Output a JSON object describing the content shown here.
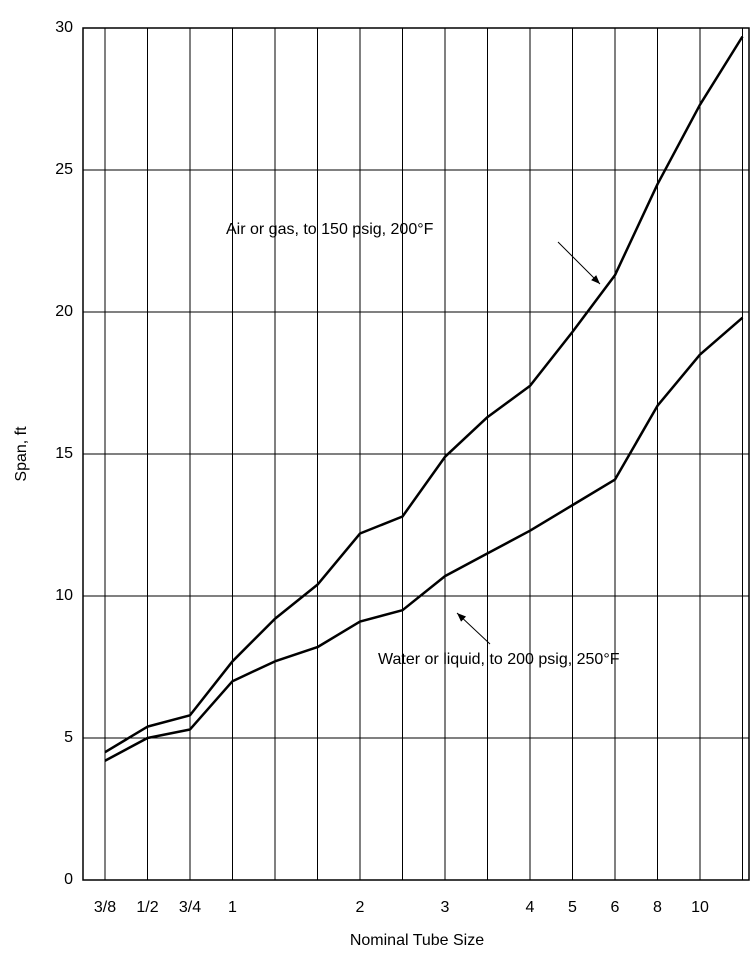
{
  "chart_data": {
    "type": "line",
    "x_label": "Nominal Tube Size",
    "y_label": "Span, ft",
    "categories": [
      "3/8",
      "1/2",
      "3/4",
      "1",
      null,
      null,
      "2",
      null,
      "3",
      null,
      "4",
      "5",
      "6",
      "8",
      "10",
      null
    ],
    "series": [
      {
        "name": "Air or gas, to 150 psig, 200°F",
        "color": "#000000",
        "values": [
          4.5,
          5.4,
          5.8,
          7.7,
          9.2,
          10.4,
          12.2,
          12.8,
          14.9,
          16.3,
          17.4,
          19.3,
          21.3,
          24.5,
          27.3,
          29.7
        ]
      },
      {
        "name": "Water or liquid, to 200 psig, 250°F",
        "color": "#000000",
        "values": [
          4.2,
          5.0,
          5.3,
          7.0,
          7.7,
          8.2,
          9.1,
          9.5,
          10.7,
          11.5,
          12.3,
          13.2,
          14.1,
          16.7,
          18.5,
          19.8
        ]
      }
    ],
    "ylim": [
      0,
      30
    ],
    "yticks": [
      0,
      5,
      10,
      15,
      20,
      25,
      30
    ],
    "grid": true
  }
}
